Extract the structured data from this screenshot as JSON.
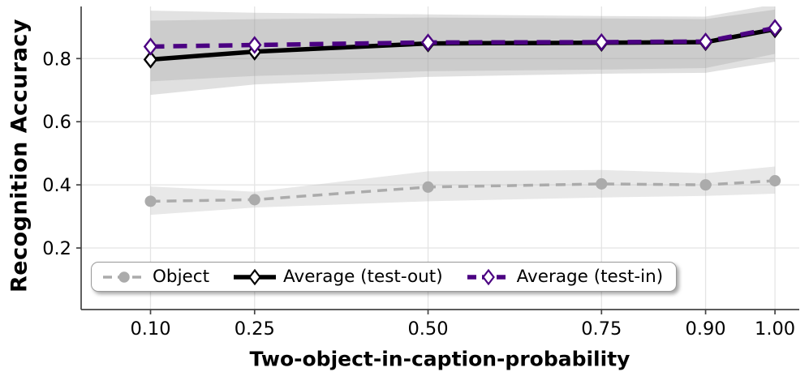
{
  "figure": {
    "xlabel": "Two-object-in-caption-probability",
    "ylabel": "Recognition Accuracy"
  },
  "chart_data": {
    "type": "line",
    "xlabel": "Two-object-in-caption-probability",
    "ylabel": "Recognition Accuracy",
    "x": [
      0.1,
      0.25,
      0.5,
      0.75,
      0.9,
      1.0
    ],
    "x_tick_labels": [
      "0.10",
      "0.25",
      "0.50",
      "0.75",
      "0.90",
      "1.00"
    ],
    "y_ticks": [
      0.2,
      0.4,
      0.6,
      0.8
    ],
    "xlim": [
      0.0,
      1.035
    ],
    "ylim": [
      0.005,
      0.965
    ],
    "grid": true,
    "legend_position": "lower-left",
    "series": [
      {
        "name": "Object",
        "color": "#ababab",
        "line_style": "dashed",
        "line_width": 3.5,
        "marker": "circle",
        "marker_fill": "#ababab",
        "values": [
          0.348,
          0.353,
          0.393,
          0.403,
          0.4,
          0.413
        ],
        "band_low": [
          0.305,
          0.328,
          0.348,
          0.36,
          0.365,
          0.372
        ],
        "band_high": [
          0.395,
          0.378,
          0.443,
          0.447,
          0.437,
          0.458
        ],
        "band_color": "#bdbdbd",
        "band_alpha": 0.35
      },
      {
        "name": "Average (test-out)",
        "color": "#000000",
        "line_style": "solid",
        "line_width": 5.5,
        "marker": "diamond",
        "marker_fill": "#ffffff",
        "values": [
          0.797,
          0.822,
          0.848,
          0.85,
          0.852,
          0.893
        ],
        "band_low": [
          0.685,
          0.718,
          0.742,
          0.752,
          0.755,
          0.79
        ],
        "band_high": [
          0.92,
          0.925,
          0.93,
          0.927,
          0.925,
          0.955
        ],
        "band_color": "#9e9e9e",
        "band_alpha": 0.32
      },
      {
        "name": "Average (test-in)",
        "color": "#4b0082",
        "line_style": "dashed",
        "line_width": 5.5,
        "marker": "diamond",
        "marker_fill": "#ffffff",
        "values": [
          0.838,
          0.843,
          0.851,
          0.852,
          0.854,
          0.897
        ],
        "band_low": [
          0.728,
          0.745,
          0.76,
          0.765,
          0.77,
          0.815
        ],
        "band_high": [
          0.952,
          0.945,
          0.94,
          0.935,
          0.933,
          0.972
        ],
        "band_color": "#9e9e9e",
        "band_alpha": 0.3
      }
    ]
  }
}
